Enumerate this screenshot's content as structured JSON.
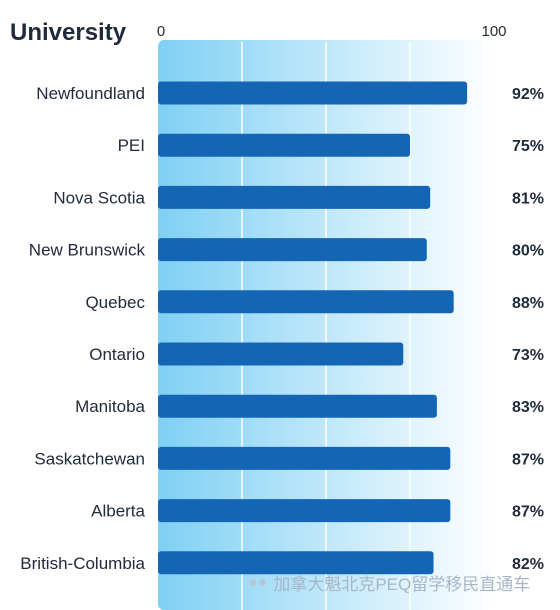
{
  "chart_data": {
    "type": "bar",
    "orientation": "horizontal",
    "title": "University",
    "xlim": [
      0,
      100
    ],
    "x_tick_labels": [
      "0",
      "100"
    ],
    "categories": [
      "Newfoundland",
      "PEI",
      "Nova Scotia",
      "New Brunswick",
      "Quebec",
      "Ontario",
      "Manitoba",
      "Saskatchewan",
      "Alberta",
      "British-Columbia"
    ],
    "values": [
      92,
      75,
      81,
      80,
      88,
      73,
      83,
      87,
      87,
      82
    ],
    "value_labels": [
      "92%",
      "75%",
      "81%",
      "80%",
      "88%",
      "73%",
      "83%",
      "87%",
      "87%",
      "82%"
    ],
    "bar_color": "#1565b5",
    "background_gradient": [
      "#7fd0f4",
      "#ffffff"
    ]
  },
  "watermark": {
    "icon": "wechat-icon",
    "text": "加拿大魁北克PEQ留学移民直通车"
  }
}
